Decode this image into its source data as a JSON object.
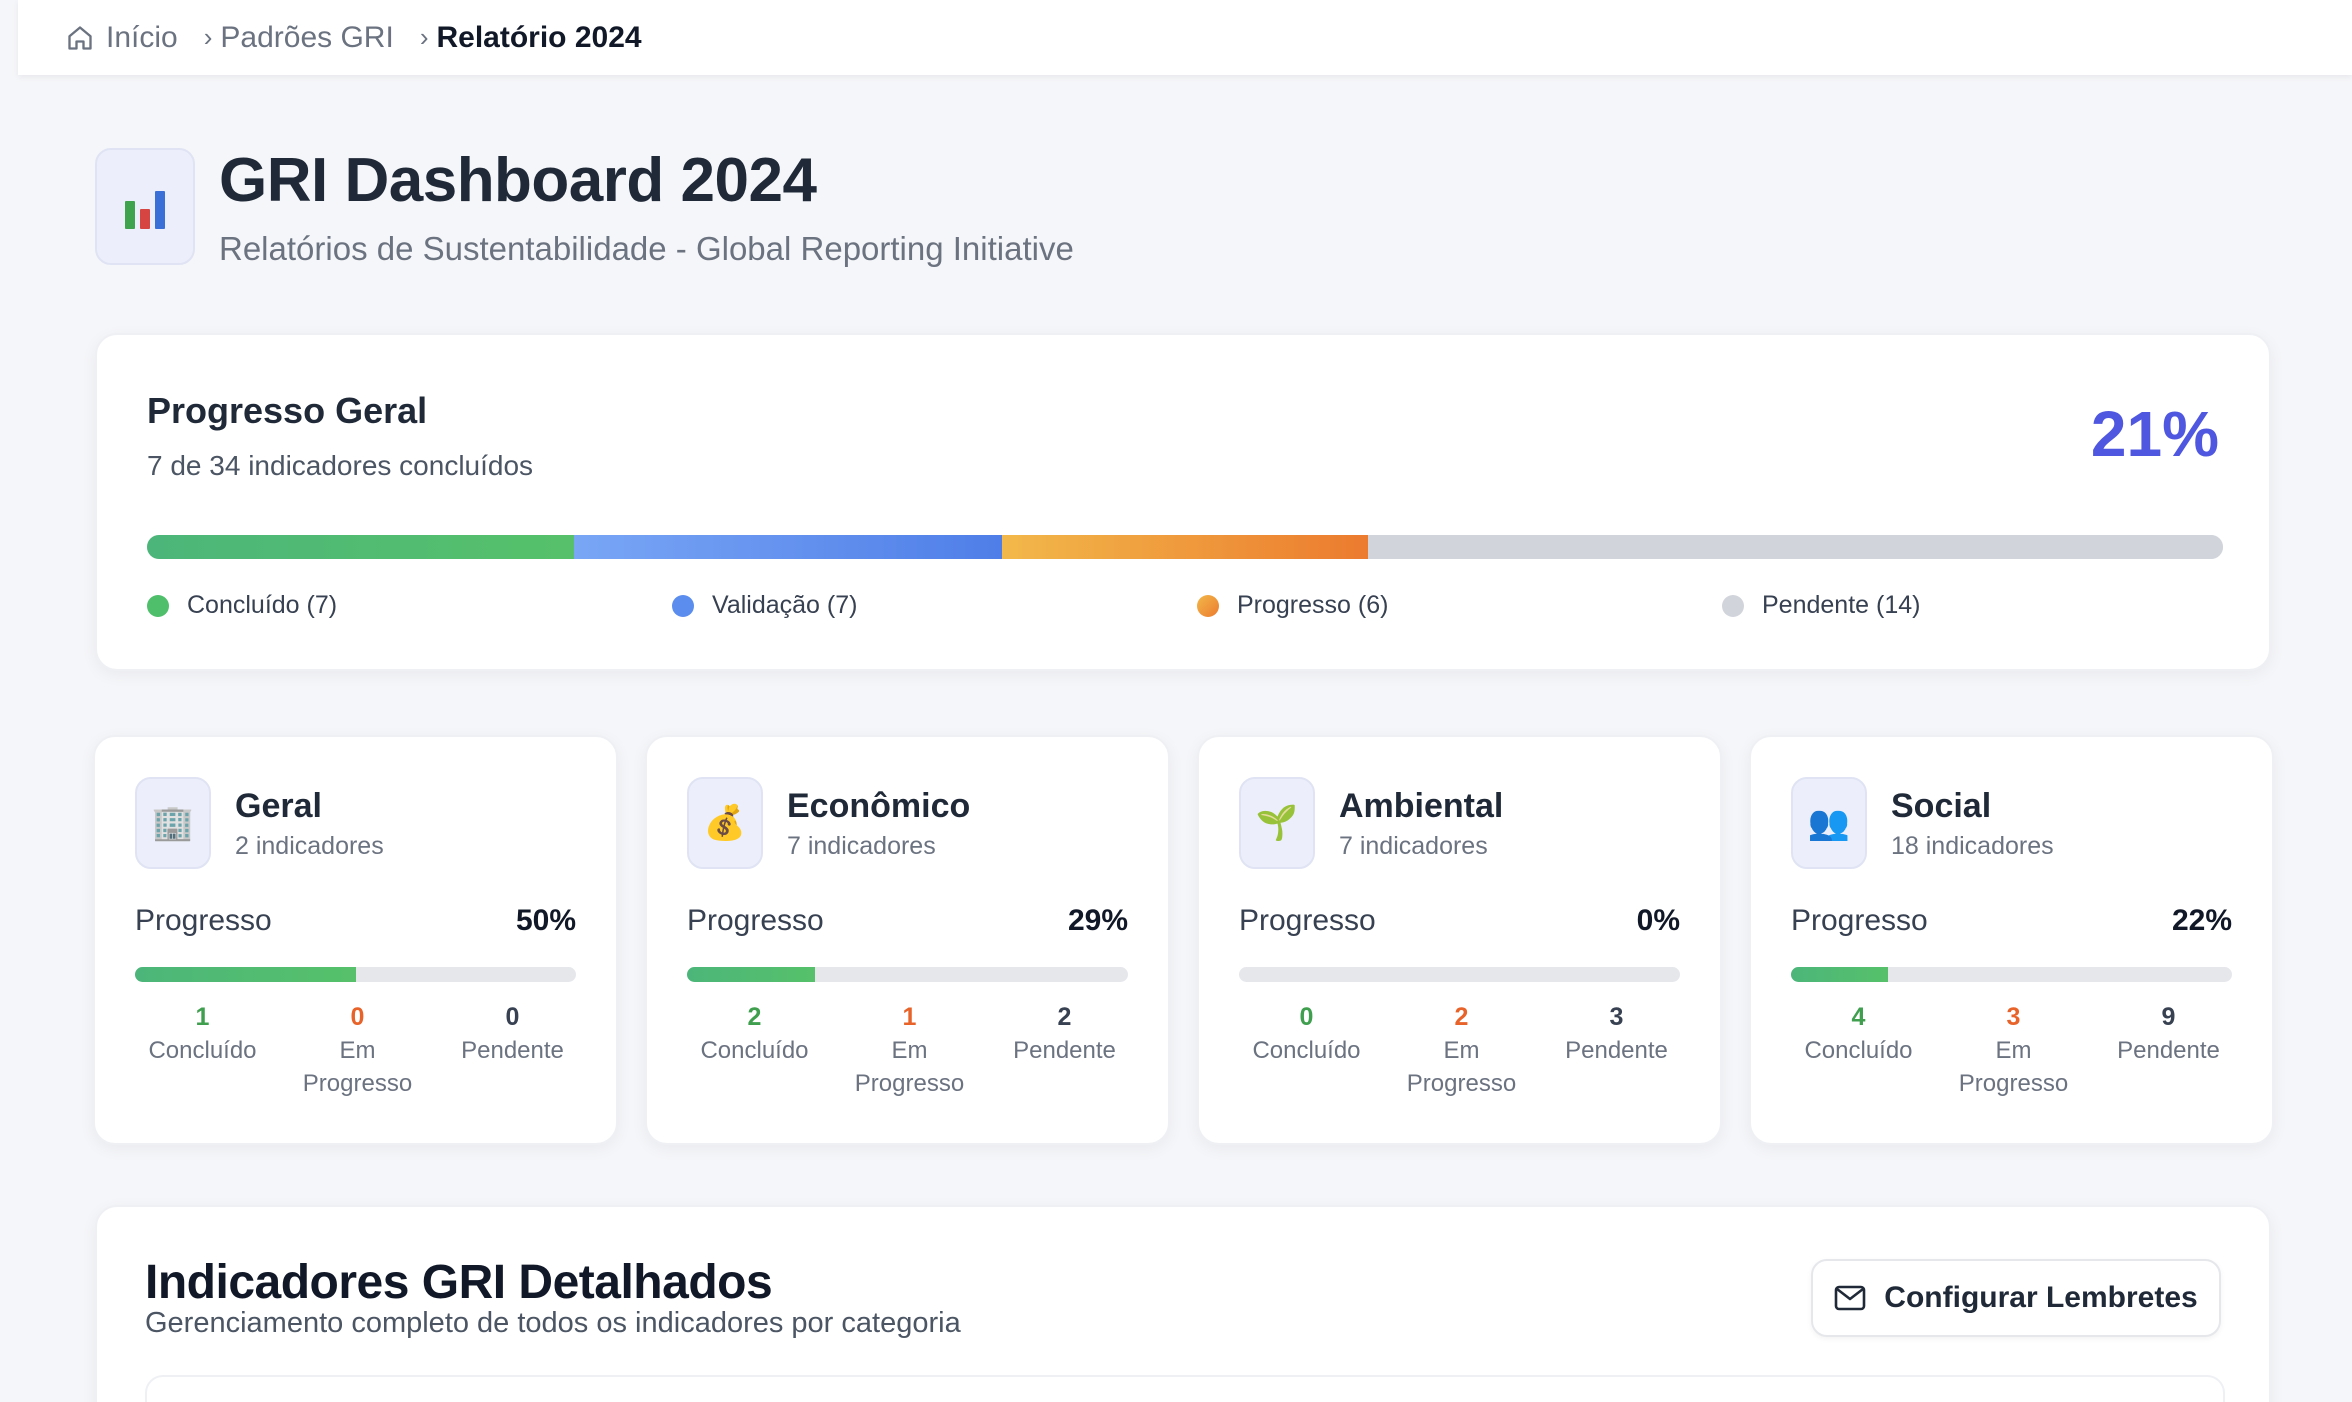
{
  "breadcrumb": {
    "items": [
      {
        "label": "Início",
        "icon": "home-icon"
      },
      {
        "label": "Padrões GRI"
      },
      {
        "label": "Relatório 2024"
      }
    ]
  },
  "header": {
    "title": "GRI Dashboard 2024",
    "subtitle": "Relatórios de Sustentabilidade - Global Reporting Initiative",
    "icon": "bar-chart-icon"
  },
  "overall": {
    "title": "Progresso Geral",
    "subtitle": "7 de 34 indicadores concluídos",
    "percent": "21%",
    "total": 34,
    "segments": [
      {
        "key": "concluido",
        "count": 7,
        "color_start": "#4cb67a",
        "color_end": "#56c16a"
      },
      {
        "key": "validacao",
        "count": 7,
        "color_start": "#79a6f5",
        "color_end": "#4f7ee8"
      },
      {
        "key": "progresso",
        "count": 6,
        "color_start": "#f2b84a",
        "color_end": "#ec7b2f"
      },
      {
        "key": "pendente",
        "count": 14,
        "color_start": "#d1d5db",
        "color_end": "#d1d5db"
      }
    ],
    "legend": [
      {
        "label": "Concluído (7)",
        "color": "#4fbf6c"
      },
      {
        "label": "Validação (7)",
        "color": "#5b8def"
      },
      {
        "label": "Progresso (6)",
        "color": "#ee9a3a"
      },
      {
        "label": "Pendente (14)",
        "color": "#d1d5db"
      }
    ]
  },
  "categories": [
    {
      "title": "Geral",
      "count": "2 indicadores",
      "icon": "building-icon",
      "glyph": "🏢",
      "progress_label": "Progresso",
      "percent": "50%",
      "progress": 0.5,
      "stats": {
        "done": "1",
        "in_progress": "0",
        "pending": "0"
      }
    },
    {
      "title": "Econômico",
      "count": "7 indicadores",
      "icon": "money-bag-icon",
      "glyph": "💰",
      "progress_label": "Progresso",
      "percent": "29%",
      "progress": 0.29,
      "stats": {
        "done": "2",
        "in_progress": "1",
        "pending": "2"
      }
    },
    {
      "title": "Ambiental",
      "count": "7 indicadores",
      "icon": "seedling-icon",
      "glyph": "🌱",
      "progress_label": "Progresso",
      "percent": "0%",
      "progress": 0.0,
      "stats": {
        "done": "0",
        "in_progress": "2",
        "pending": "3"
      }
    },
    {
      "title": "Social",
      "count": "18 indicadores",
      "icon": "people-icon",
      "glyph": "👥",
      "progress_label": "Progresso",
      "percent": "22%",
      "progress": 0.22,
      "stats": {
        "done": "4",
        "in_progress": "3",
        "pending": "9"
      }
    }
  ],
  "stat_labels": {
    "done": "Concluído",
    "in_progress_1": "Em",
    "in_progress_2": "Progresso",
    "pending": "Pendente"
  },
  "details": {
    "title": "Indicadores GRI Detalhados",
    "subtitle": "Gerenciamento completo de todos os indicadores por categoria",
    "reminder_button": "Configurar Lembretes",
    "reminder_icon": "mail-icon"
  }
}
